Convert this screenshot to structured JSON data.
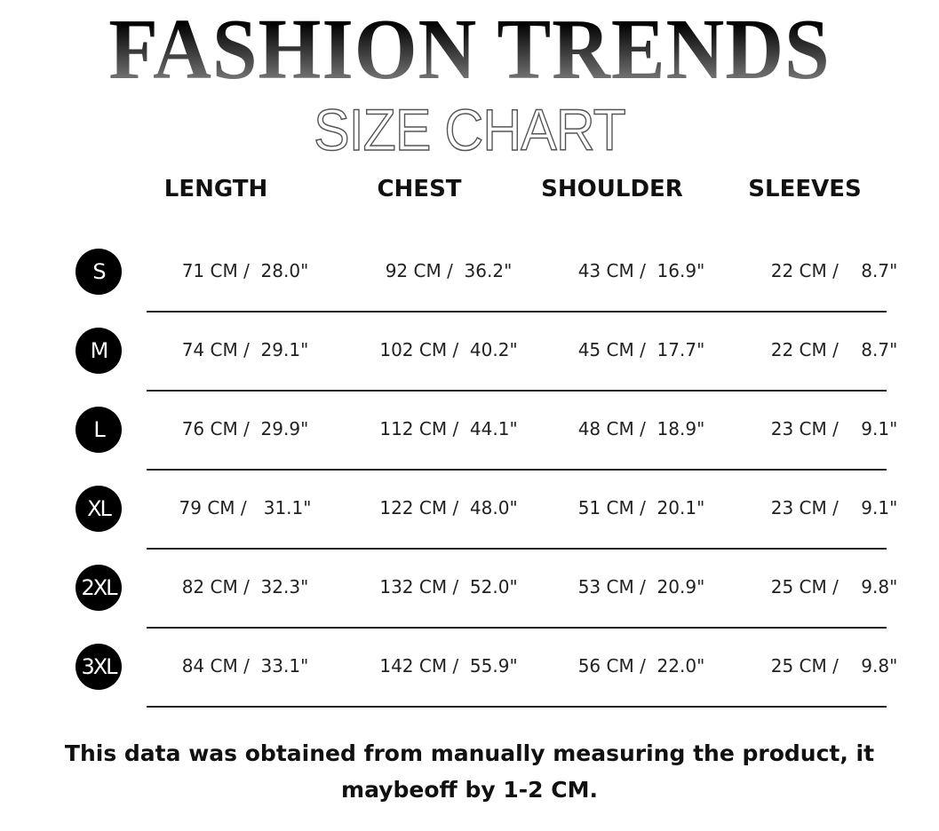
{
  "header": {
    "title": "FASHION TRENDS",
    "subtitle": "SIZE CHART"
  },
  "columns": [
    "LENGTH",
    "CHEST",
    "SHOULDER",
    "SLEEVES"
  ],
  "rows": [
    {
      "size": "S",
      "cells": [
        "71 CM /  28.0\"",
        "92 CM /  36.2\"",
        "43 CM /  16.9\"",
        "22 CM /    8.7\""
      ]
    },
    {
      "size": "M",
      "cells": [
        "74 CM /  29.1\"",
        "102 CM /  40.2\"",
        "45 CM /  17.7\"",
        "22 CM /    8.7\""
      ]
    },
    {
      "size": "L",
      "cells": [
        "76 CM /  29.9\"",
        "112 CM /  44.1\"",
        "48 CM /  18.9\"",
        "23 CM /    9.1\""
      ]
    },
    {
      "size": "XL",
      "cells": [
        "79 CM /   31.1\"",
        "122 CM /  48.0\"",
        "51 CM /  20.1\"",
        "23 CM /    9.1\""
      ]
    },
    {
      "size": "2XL",
      "cells": [
        "82 CM /  32.3\"",
        "132 CM /  52.0\"",
        "53 CM /  20.9\"",
        "25 CM /    9.8\""
      ]
    },
    {
      "size": "3XL",
      "cells": [
        "84 CM /  33.1\"",
        "142 CM /  55.9\"",
        "56 CM /  22.0\"",
        "25 CM /    9.8\""
      ]
    }
  ],
  "note": "This data was obtained from manually measuring the product, it maybeoff by 1-2 CM."
}
